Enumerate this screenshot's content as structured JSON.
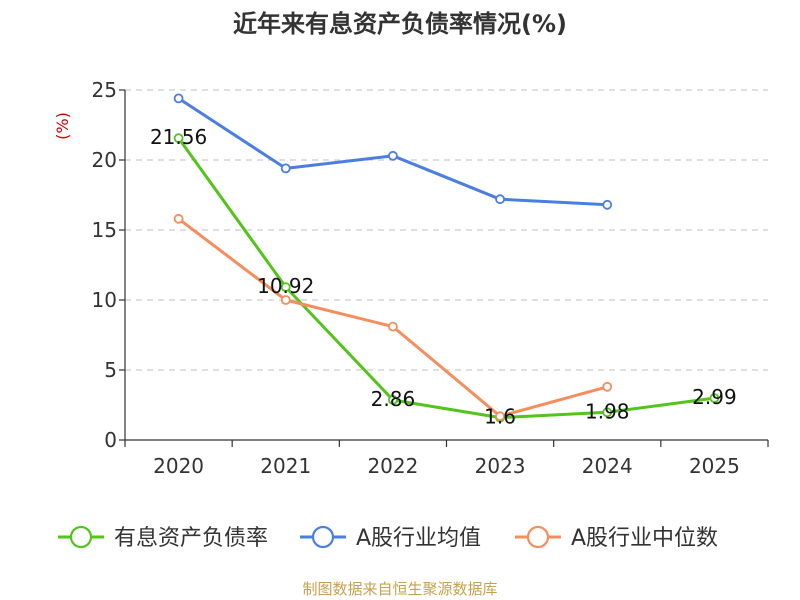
{
  "chart_data": {
    "type": "line",
    "title": "近年来有息资产负债率情况(%)",
    "ylabel": "(%)",
    "xlabel": "",
    "categories": [
      "2020",
      "2021",
      "2022",
      "2023",
      "2024",
      "2025"
    ],
    "ylim": [
      0,
      25
    ],
    "yticks": [
      0,
      5,
      10,
      15,
      20,
      25
    ],
    "grid": true,
    "legend_position": "bottom",
    "series": [
      {
        "name": "有息资产负债率",
        "color": "#52c41a",
        "values": [
          21.56,
          10.92,
          2.86,
          1.6,
          1.98,
          2.99
        ],
        "labels": [
          "21.56",
          "10.92",
          "2.86",
          "1.6",
          "1.98",
          "2.99"
        ]
      },
      {
        "name": "A股行业均值",
        "color": "#4a7ee0",
        "values": [
          24.4,
          19.4,
          20.3,
          17.2,
          16.8,
          null
        ]
      },
      {
        "name": "A股行业中位数",
        "color": "#f58d5c",
        "values": [
          15.8,
          10.0,
          8.1,
          1.7,
          3.8,
          null
        ]
      }
    ]
  },
  "source": "制图数据来自恒生聚源数据库",
  "colors": {
    "title": "#333333",
    "axis": "#333333",
    "grid": "#cccccc",
    "ylabel": "#cc0000",
    "source": "#c8a050"
  }
}
